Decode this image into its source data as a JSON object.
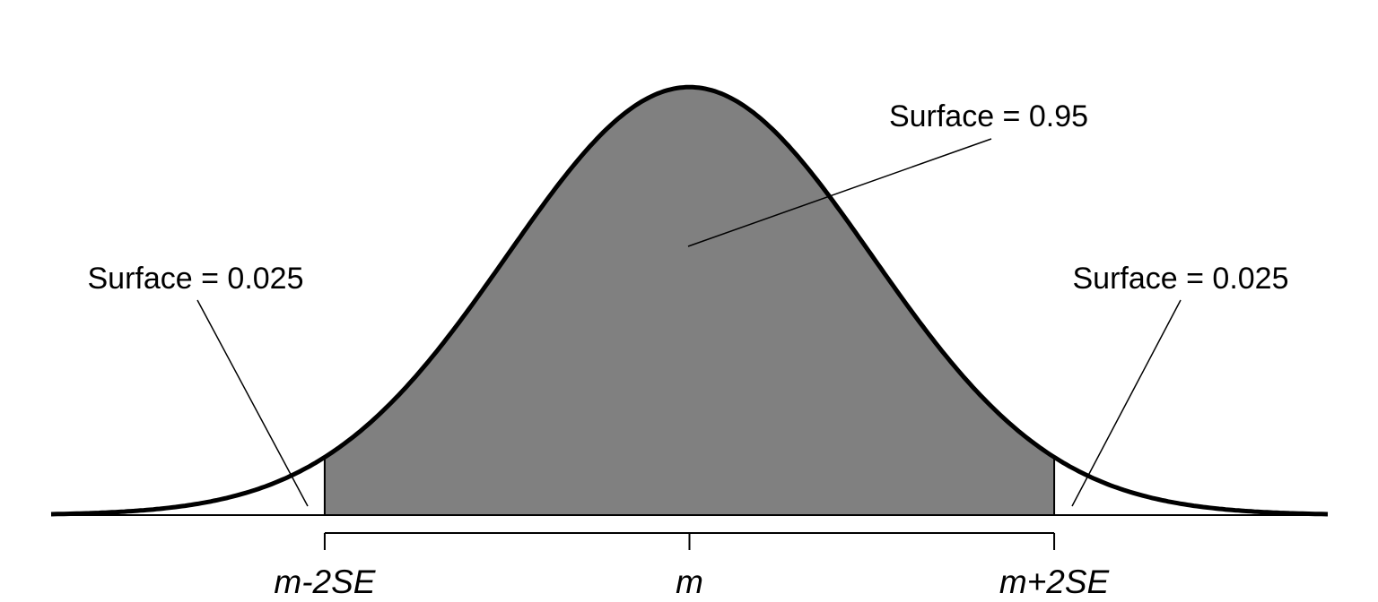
{
  "chart_data": {
    "type": "density",
    "distribution": "normal",
    "mean": 0,
    "sd": 1,
    "xlim": [
      -3.5,
      3.5
    ],
    "ylim": [
      0,
      0.4
    ],
    "xticks": [
      {
        "value": -2,
        "label": "m-2SE"
      },
      {
        "value": 0,
        "label": "m"
      },
      {
        "value": 2,
        "label": "m+2SE"
      }
    ],
    "shaded_range": [
      -2,
      2
    ],
    "shade_color": "#808080",
    "line_color": "#000000",
    "annotations": [
      {
        "text": "Surface = 0.025"
      },
      {
        "text": "Surface = 0.95"
      },
      {
        "text": "Surface = 0.025"
      }
    ]
  }
}
